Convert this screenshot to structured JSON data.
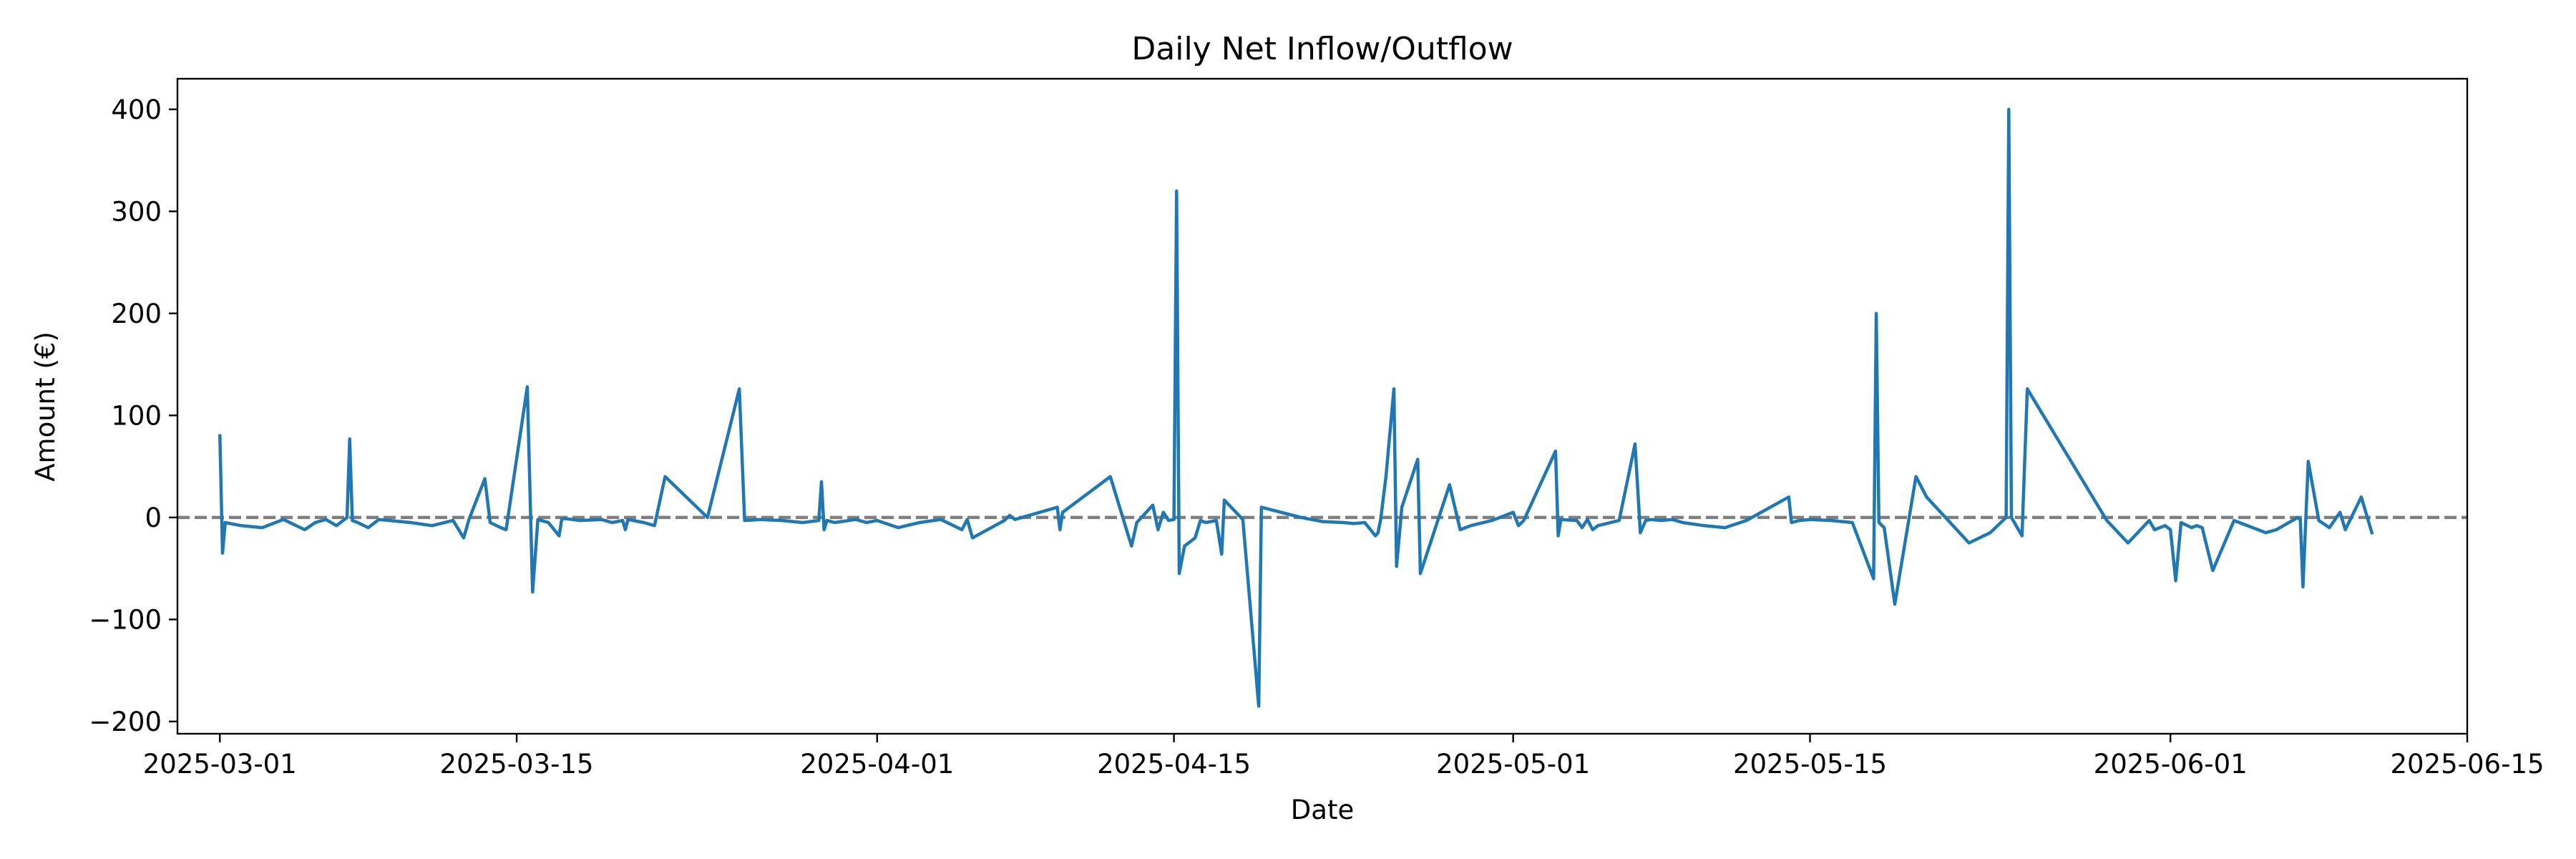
{
  "chart_data": {
    "type": "line",
    "title": "Daily Net Inflow/Outflow",
    "xlabel": "Date",
    "ylabel": "Amount (€)",
    "x_is_date": true,
    "xlim": [
      "2025-02-27",
      "2025-06-15"
    ],
    "ylim": [
      -212,
      430
    ],
    "x_ticks": [
      "2025-03-01",
      "2025-03-15",
      "2025-04-01",
      "2025-04-15",
      "2025-05-01",
      "2025-05-15",
      "2025-06-01",
      "2025-06-15"
    ],
    "y_ticks": [
      -200,
      -100,
      0,
      100,
      200,
      300,
      400
    ],
    "grid": false,
    "legend": "none",
    "colors": {
      "series": "#1f77b4",
      "reference": "#7f7f7f"
    },
    "reference_line": {
      "y": 0,
      "style": "dashed"
    },
    "series": [
      {
        "x": [
          "2025-03-01T00:00",
          "2025-03-01T03:00",
          "2025-03-01T06:00",
          "2025-03-02T00:00",
          "2025-03-03T00:00",
          "2025-03-04T00:00",
          "2025-03-05T00:00",
          "2025-03-05T12:00",
          "2025-03-06T00:00",
          "2025-03-06T12:00",
          "2025-03-07T00:00",
          "2025-03-07T03:00",
          "2025-03-07T06:00",
          "2025-03-07T12:00",
          "2025-03-08T00:00",
          "2025-03-08T12:00",
          "2025-03-09T00:00",
          "2025-03-10T00:00",
          "2025-03-11T00:00",
          "2025-03-12T00:00",
          "2025-03-12T12:00",
          "2025-03-12T18:00",
          "2025-03-13T12:00",
          "2025-03-13T18:00",
          "2025-03-14T06:00",
          "2025-03-14T12:00",
          "2025-03-15T12:00",
          "2025-03-15T18:00",
          "2025-03-16T00:00",
          "2025-03-16T12:00",
          "2025-03-17T00:00",
          "2025-03-17T03:00",
          "2025-03-17T06:00",
          "2025-03-18T00:00",
          "2025-03-19T00:00",
          "2025-03-19T12:00",
          "2025-03-20T00:00",
          "2025-03-20T03:00",
          "2025-03-20T06:00",
          "2025-03-21T00:00",
          "2025-03-21T12:00",
          "2025-03-22T00:00",
          "2025-03-24T00:00",
          "2025-03-25T12:00",
          "2025-03-25T18:00",
          "2025-03-26T12:00",
          "2025-03-27T12:00",
          "2025-03-28T12:00",
          "2025-03-29T06:00",
          "2025-03-29T09:00",
          "2025-03-29T12:00",
          "2025-03-29T15:00",
          "2025-03-30T00:00",
          "2025-03-31T00:00",
          "2025-03-31T12:00",
          "2025-04-01T00:00",
          "2025-04-02T00:00",
          "2025-04-03T00:00",
          "2025-04-04T00:00",
          "2025-04-05T00:00",
          "2025-04-05T06:00",
          "2025-04-05T12:00",
          "2025-04-07T00:00",
          "2025-04-07T06:00",
          "2025-04-07T12:00",
          "2025-04-09T12:00",
          "2025-04-09T15:00",
          "2025-04-09T18:00",
          "2025-04-12T00:00",
          "2025-04-13T00:00",
          "2025-04-13T06:00",
          "2025-04-14T00:00",
          "2025-04-14T06:00",
          "2025-04-14T12:00",
          "2025-04-14T18:00",
          "2025-04-15T00:00",
          "2025-04-15T03:00",
          "2025-04-15T06:00",
          "2025-04-15T12:00",
          "2025-04-16T00:00",
          "2025-04-16T06:00",
          "2025-04-16T12:00",
          "2025-04-17T00:00",
          "2025-04-17T06:00",
          "2025-04-17T09:00",
          "2025-04-18T06:00",
          "2025-04-19T00:00",
          "2025-04-19T03:00",
          "2025-04-21T00:00",
          "2025-04-22T00:00",
          "2025-04-23T00:00",
          "2025-04-23T12:00",
          "2025-04-24T00:00",
          "2025-04-24T12:00",
          "2025-04-24T15:00",
          "2025-04-24T18:00",
          "2025-04-25T00:00",
          "2025-04-25T09:00",
          "2025-04-25T12:00",
          "2025-04-25T18:00",
          "2025-04-26T12:00",
          "2025-04-26T15:00",
          "2025-04-28T00:00",
          "2025-04-28T12:00",
          "2025-04-28T18:00",
          "2025-04-29T00:00",
          "2025-04-30T00:00",
          "2025-05-01T00:00",
          "2025-05-01T06:00",
          "2025-05-01T12:00",
          "2025-05-03T00:00",
          "2025-05-03T03:00",
          "2025-05-03T06:00",
          "2025-05-04T00:00",
          "2025-05-04T06:00",
          "2025-05-04T12:00",
          "2025-05-04T18:00",
          "2025-05-05T00:00",
          "2025-05-06T00:00",
          "2025-05-06T18:00",
          "2025-05-07T00:00",
          "2025-05-07T06:00",
          "2025-05-07T12:00",
          "2025-05-08T00:00",
          "2025-05-08T12:00",
          "2025-05-09T00:00",
          "2025-05-10T00:00",
          "2025-05-11T00:00",
          "2025-05-12T00:00",
          "2025-05-14T00:00",
          "2025-05-14T03:00",
          "2025-05-14T12:00",
          "2025-05-15T00:00",
          "2025-05-16T00:00",
          "2025-05-17T00:00",
          "2025-05-18T00:00",
          "2025-05-18T03:00",
          "2025-05-18T06:00",
          "2025-05-18T12:00",
          "2025-05-19T00:00",
          "2025-05-20T00:00",
          "2025-05-20T12:00",
          "2025-05-22T12:00",
          "2025-05-23T12:00",
          "2025-05-24T06:00",
          "2025-05-24T09:00",
          "2025-05-24T12:00",
          "2025-05-25T00:00",
          "2025-05-25T06:00",
          "2025-05-29T00:00",
          "2025-05-30T00:00",
          "2025-05-31T00:00",
          "2025-05-31T06:00",
          "2025-05-31T18:00",
          "2025-06-01T00:00",
          "2025-06-01T06:00",
          "2025-06-01T12:00",
          "2025-06-02T00:00",
          "2025-06-02T06:00",
          "2025-06-02T12:00",
          "2025-06-03T00:00",
          "2025-06-04T00:00",
          "2025-06-05T12:00",
          "2025-06-06T00:00",
          "2025-06-07T00:00",
          "2025-06-07T03:00",
          "2025-06-07T06:00",
          "2025-06-07T12:00",
          "2025-06-08T00:00",
          "2025-06-08T12:00",
          "2025-06-09T00:00",
          "2025-06-09T06:00",
          "2025-06-10T00:00",
          "2025-06-10T12:00"
        ],
        "y": [
          80,
          -35,
          -5,
          -8,
          -10,
          -2,
          -12,
          -5,
          -2,
          -8,
          0,
          77,
          -3,
          -5,
          -10,
          -2,
          -3,
          -5,
          -8,
          -3,
          -20,
          -2,
          38,
          -5,
          -10,
          -12,
          128,
          -73,
          -2,
          -5,
          -18,
          -2,
          -1,
          -3,
          -2,
          -5,
          -3,
          -12,
          -2,
          -5,
          -8,
          40,
          0,
          126,
          -3,
          -2,
          -3,
          -5,
          -3,
          35,
          -12,
          -3,
          -5,
          -2,
          -5,
          -3,
          -10,
          -5,
          -2,
          -12,
          -2,
          -20,
          -3,
          2,
          -2,
          10,
          -12,
          5,
          40,
          -28,
          -5,
          12,
          -12,
          5,
          -3,
          -2,
          320,
          -55,
          -28,
          -20,
          -3,
          -5,
          -3,
          -36,
          17,
          -2,
          -185,
          10,
          0,
          -4,
          -5,
          -6,
          -5,
          -18,
          -15,
          -2,
          40,
          126,
          -48,
          10,
          57,
          -55,
          32,
          -12,
          -10,
          -8,
          -3,
          5,
          -8,
          -3,
          65,
          -18,
          -2,
          -3,
          -10,
          -2,
          -12,
          -8,
          -3,
          72,
          -15,
          -3,
          -2,
          -3,
          -2,
          -5,
          -8,
          -10,
          -3,
          20,
          -5,
          -3,
          -2,
          -3,
          -5,
          -60,
          200,
          -5,
          -10,
          -85,
          40,
          20,
          -25,
          -15,
          0,
          400,
          0,
          -18,
          126,
          -3,
          -25,
          -3,
          -12,
          -8,
          -12,
          -62,
          -5,
          -10,
          -8,
          -10,
          -52,
          -3,
          -15,
          -12,
          0,
          -2,
          -68,
          55,
          -3,
          -10,
          5,
          -12,
          20,
          -15
        ]
      }
    ]
  }
}
